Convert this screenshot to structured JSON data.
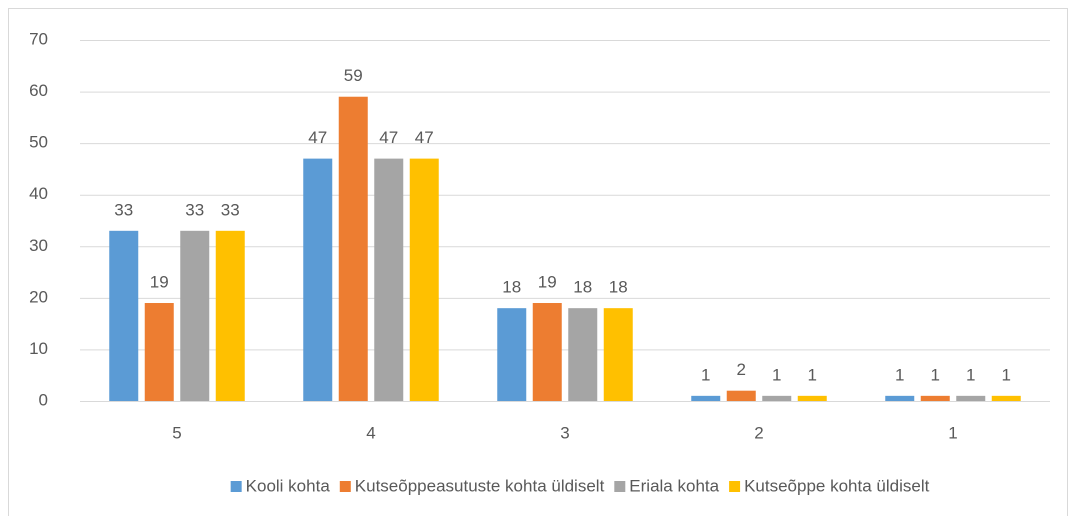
{
  "chart_data": {
    "type": "bar",
    "categories": [
      "5",
      "4",
      "3",
      "2",
      "1"
    ],
    "series": [
      {
        "name": "Kooli kohta",
        "color": "#5b9bd5",
        "values": [
          33,
          47,
          18,
          1,
          1
        ]
      },
      {
        "name": "Kutseõppeasutuste kohta üldiselt",
        "color": "#ed7d31",
        "values": [
          19,
          59,
          19,
          2,
          1
        ]
      },
      {
        "name": "Eriala kohta",
        "color": "#a5a5a5",
        "values": [
          33,
          47,
          18,
          1,
          1
        ]
      },
      {
        "name": "Kutseõppe kohta üldiselt",
        "color": "#ffc000",
        "values": [
          33,
          47,
          18,
          1,
          1
        ]
      }
    ],
    "ylim": [
      0,
      70
    ],
    "yticks": [
      0,
      10,
      20,
      30,
      40,
      50,
      60,
      70
    ],
    "grid": true,
    "legend": "bottom"
  }
}
